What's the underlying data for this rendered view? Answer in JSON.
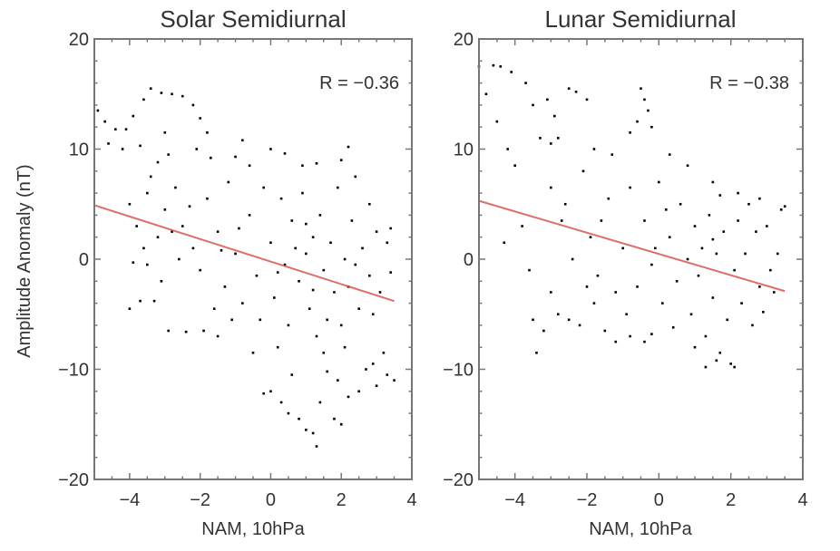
{
  "chart_data": [
    {
      "type": "scatter",
      "title": "Solar Semidiurnal",
      "xlabel": "NAM, 10hPa",
      "ylabel": "Amplitude Anomaly (nT)",
      "xlim": [
        -5,
        4
      ],
      "ylim": [
        -20,
        20
      ],
      "xticks": [
        "-4",
        "-2",
        "0",
        "2",
        "4"
      ],
      "yticks": [
        "-20",
        "-10",
        "0",
        "10",
        "20"
      ],
      "annotation": "R = −0.36",
      "grid": false,
      "point_color": "#000000",
      "fit_line": {
        "color": "#d9534f",
        "points": [
          [
            -5,
            4.9
          ],
          [
            3.5,
            -3.8
          ]
        ]
      },
      "points": [
        [
          -4.9,
          13.5
        ],
        [
          -4.7,
          12.5
        ],
        [
          -4.4,
          11.8
        ],
        [
          -4.1,
          11.8
        ],
        [
          -3.9,
          13
        ],
        [
          -3.6,
          14.5
        ],
        [
          -3.4,
          15.5
        ],
        [
          -3.1,
          15.1
        ],
        [
          -2.8,
          15
        ],
        [
          -2.5,
          14.8
        ],
        [
          -2.2,
          14
        ],
        [
          -2.0,
          12.8
        ],
        [
          -1.8,
          11.5
        ],
        [
          -4.6,
          10.5
        ],
        [
          -4.2,
          10
        ],
        [
          -3.7,
          10.3
        ],
        [
          -3.0,
          11.5
        ],
        [
          -0.8,
          10.8
        ],
        [
          -2.9,
          9.5
        ],
        [
          -3.2,
          8.8
        ],
        [
          -3.4,
          7.5
        ],
        [
          -3.5,
          6
        ],
        [
          -2.1,
          10
        ],
        [
          -1.7,
          9.2
        ],
        [
          -1.0,
          9.3
        ],
        [
          -0.6,
          8.5
        ],
        [
          0.0,
          10
        ],
        [
          0.4,
          9.6
        ],
        [
          0.9,
          8.5
        ],
        [
          1.3,
          8.7
        ],
        [
          2.0,
          9
        ],
        [
          2.2,
          10.2
        ],
        [
          2.4,
          7.5
        ],
        [
          -4.0,
          5
        ],
        [
          -3.8,
          3
        ],
        [
          -3.6,
          1
        ],
        [
          -3.9,
          -0.3
        ],
        [
          -3.5,
          -0.5
        ],
        [
          -4.0,
          -4.5
        ],
        [
          -3.7,
          -3.8
        ],
        [
          -3.3,
          -3.8
        ],
        [
          -2.9,
          -6.5
        ],
        [
          -2.4,
          -6.6
        ],
        [
          -1.9,
          -6.5
        ],
        [
          -1.5,
          -7
        ],
        [
          -3.0,
          4.5
        ],
        [
          -2.7,
          6.5
        ],
        [
          -2.5,
          3
        ],
        [
          -2.2,
          1
        ],
        [
          -2.0,
          -1
        ],
        [
          -1.8,
          5.5
        ],
        [
          -1.5,
          2.5
        ],
        [
          -1.3,
          -2.5
        ],
        [
          -1.2,
          7
        ],
        [
          -1.0,
          0.5
        ],
        [
          -0.8,
          -4
        ],
        [
          -0.6,
          4
        ],
        [
          -0.4,
          -1.5
        ],
        [
          -0.2,
          6.5
        ],
        [
          0.0,
          1.5
        ],
        [
          0.1,
          -3.5
        ],
        [
          0.3,
          5.5
        ],
        [
          0.4,
          -0.5
        ],
        [
          0.5,
          -6
        ],
        [
          0.6,
          3.5
        ],
        [
          0.8,
          -2
        ],
        [
          0.9,
          6
        ],
        [
          1.0,
          0.5
        ],
        [
          1.1,
          -4.5
        ],
        [
          1.2,
          2
        ],
        [
          1.3,
          -7
        ],
        [
          1.4,
          4
        ],
        [
          1.5,
          -1
        ],
        [
          1.6,
          -5.5
        ],
        [
          1.7,
          1.5
        ],
        [
          1.8,
          -3
        ],
        [
          1.9,
          6.5
        ],
        [
          2.0,
          -6
        ],
        [
          2.1,
          0
        ],
        [
          2.2,
          -2.5
        ],
        [
          2.3,
          3.5
        ],
        [
          2.5,
          -4.5
        ],
        [
          2.6,
          1
        ],
        [
          2.8,
          -1.5
        ],
        [
          3.0,
          2.5
        ],
        [
          3.1,
          -3
        ],
        [
          3.3,
          1.5
        ],
        [
          3.4,
          2.8
        ],
        [
          3.2,
          -8.5
        ],
        [
          2.9,
          -9.5
        ],
        [
          2.7,
          -10
        ],
        [
          3.3,
          -10.5
        ],
        [
          3.5,
          -11
        ],
        [
          3.0,
          -11.5
        ],
        [
          2.5,
          -12
        ],
        [
          2.2,
          -12.5
        ],
        [
          1.9,
          -11
        ],
        [
          1.6,
          -10.2
        ],
        [
          2.1,
          -8
        ],
        [
          1.4,
          -13
        ],
        [
          1.2,
          -15.8
        ],
        [
          1.3,
          -17
        ],
        [
          1.0,
          -15.5
        ],
        [
          0.8,
          -14.5
        ],
        [
          0.5,
          -14
        ],
        [
          0.3,
          -13
        ],
        [
          0.0,
          -12
        ],
        [
          -0.2,
          -12.2
        ],
        [
          0.6,
          -10.5
        ],
        [
          1.8,
          -14.5
        ],
        [
          2.0,
          -15
        ],
        [
          -0.5,
          -8.5
        ],
        [
          0.2,
          -8
        ],
        [
          1.5,
          -8.5
        ],
        [
          -2.6,
          0
        ],
        [
          -3.2,
          2
        ],
        [
          -1.6,
          -4.5
        ],
        [
          -0.9,
          2.8
        ],
        [
          0.7,
          1
        ],
        [
          2.4,
          -0.5
        ],
        [
          -2.3,
          4.8
        ],
        [
          1.0,
          3.2
        ],
        [
          -0.3,
          -5.5
        ],
        [
          1.2,
          -2.8
        ],
        [
          0.2,
          -1.2
        ],
        [
          -1.1,
          -5.5
        ],
        [
          2.8,
          5
        ],
        [
          2.9,
          -5
        ],
        [
          3.4,
          -1.2
        ],
        [
          -3.1,
          -2
        ],
        [
          -2.8,
          2.5
        ],
        [
          -1.4,
          0.8
        ]
      ]
    },
    {
      "type": "scatter",
      "title": "Lunar Semidiurnal",
      "xlabel": "NAM, 10hPa",
      "ylabel": "",
      "xlim": [
        -5,
        4
      ],
      "ylim": [
        -20,
        20
      ],
      "xticks": [
        "-4",
        "-2",
        "0",
        "2",
        "4"
      ],
      "yticks": [
        "-20",
        "-10",
        "0",
        "10",
        "20"
      ],
      "annotation": "R = −0.38",
      "grid": false,
      "point_color": "#000000",
      "fit_line": {
        "color": "#d9534f",
        "points": [
          [
            -5,
            5.3
          ],
          [
            3.5,
            -2.9
          ]
        ]
      },
      "points": [
        [
          -5,
          17.5
        ],
        [
          -4.8,
          15
        ],
        [
          -4.6,
          17.6
        ],
        [
          -4.4,
          17.5
        ],
        [
          -4.1,
          17
        ],
        [
          -3.7,
          16
        ],
        [
          -4.5,
          12.5
        ],
        [
          -4.2,
          10
        ],
        [
          -4.0,
          8.5
        ],
        [
          -3.5,
          14
        ],
        [
          -3.1,
          14.5
        ],
        [
          -2.9,
          13
        ],
        [
          -2.5,
          15.5
        ],
        [
          -2.3,
          15.2
        ],
        [
          -2.0,
          14.5
        ],
        [
          -3.3,
          11
        ],
        [
          -3.0,
          10.5
        ],
        [
          -2.8,
          11
        ],
        [
          -0.5,
          15.5
        ],
        [
          -0.4,
          14.5
        ],
        [
          -0.3,
          13.5
        ],
        [
          -0.6,
          12.5
        ],
        [
          -0.2,
          12
        ],
        [
          -0.8,
          11.5
        ],
        [
          -1.8,
          10
        ],
        [
          -1.3,
          9.5
        ],
        [
          0.3,
          9.5
        ],
        [
          0.8,
          8.5
        ],
        [
          1.5,
          7
        ],
        [
          2.2,
          6
        ],
        [
          2.8,
          5.5
        ],
        [
          3.4,
          4.5
        ],
        [
          -4.3,
          1.5
        ],
        [
          -3.8,
          3
        ],
        [
          -3.6,
          -1
        ],
        [
          -3.5,
          -5.5
        ],
        [
          -3.4,
          -8.5
        ],
        [
          -3.2,
          -6.5
        ],
        [
          -2.8,
          -5
        ],
        [
          -2.5,
          -5.5
        ],
        [
          -2.2,
          -6
        ],
        [
          -1.8,
          -4
        ],
        [
          -1.5,
          -6.5
        ],
        [
          -1.2,
          -7.5
        ],
        [
          -0.8,
          -7
        ],
        [
          -0.4,
          -7.5
        ],
        [
          -0.2,
          -6.8
        ],
        [
          -3.0,
          6.5
        ],
        [
          -2.7,
          3.5
        ],
        [
          -2.4,
          0
        ],
        [
          -2.1,
          8
        ],
        [
          -1.9,
          2
        ],
        [
          -1.7,
          -1.5
        ],
        [
          -1.4,
          5.5
        ],
        [
          -1.2,
          -3
        ],
        [
          -1.0,
          1
        ],
        [
          -0.8,
          6.5
        ],
        [
          -0.6,
          -2.5
        ],
        [
          -0.4,
          3.5
        ],
        [
          -0.2,
          -0.5
        ],
        [
          0.0,
          7
        ],
        [
          0.1,
          -4
        ],
        [
          0.3,
          2
        ],
        [
          0.5,
          -2
        ],
        [
          0.6,
          5
        ],
        [
          0.8,
          0
        ],
        [
          0.9,
          -5
        ],
        [
          1.0,
          3
        ],
        [
          1.1,
          -1.5
        ],
        [
          1.2,
          1
        ],
        [
          1.3,
          -7
        ],
        [
          1.4,
          4
        ],
        [
          1.5,
          -3.5
        ],
        [
          1.6,
          0.5
        ],
        [
          1.7,
          -8.5
        ],
        [
          1.8,
          2.5
        ],
        [
          1.9,
          -5.5
        ],
        [
          2.0,
          -9.5
        ],
        [
          2.1,
          -1
        ],
        [
          2.2,
          3.5
        ],
        [
          2.3,
          -4
        ],
        [
          2.4,
          0.5
        ],
        [
          2.6,
          -6
        ],
        [
          2.7,
          2.5
        ],
        [
          2.8,
          -2.5
        ],
        [
          3.0,
          3
        ],
        [
          3.1,
          -1
        ],
        [
          3.3,
          0.5
        ],
        [
          3.5,
          4.8
        ],
        [
          1.3,
          -9.8
        ],
        [
          1.6,
          -9.2
        ],
        [
          2.1,
          -9.8
        ],
        [
          1.0,
          -8
        ],
        [
          -3.0,
          -3
        ],
        [
          -2.0,
          -2.5
        ],
        [
          -0.9,
          -5
        ],
        [
          0.4,
          -6.2
        ],
        [
          1.7,
          5.8
        ],
        [
          2.5,
          5
        ],
        [
          -1.6,
          3.5
        ],
        [
          -2.6,
          5
        ],
        [
          0.2,
          4.5
        ],
        [
          1.5,
          1.8
        ],
        [
          -0.1,
          1
        ],
        [
          2.9,
          -4.8
        ],
        [
          3.2,
          -3
        ]
      ]
    }
  ]
}
